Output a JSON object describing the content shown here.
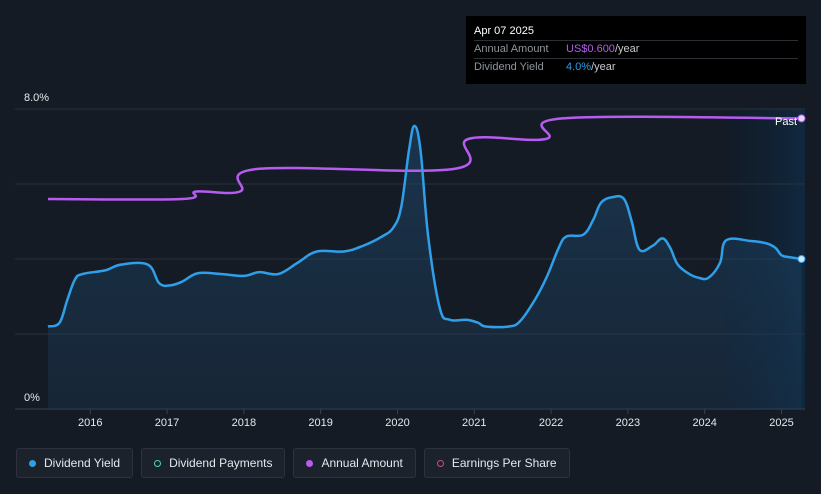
{
  "tooltip": {
    "date": "Apr 07 2025",
    "rows": [
      {
        "label": "Annual Amount",
        "value": "US$0.600",
        "unit": "/year"
      },
      {
        "label": "Dividend Yield",
        "value": "4.0%",
        "unit": "/year"
      }
    ]
  },
  "legend": [
    {
      "label": "Dividend Yield",
      "color": "#2e9fe8",
      "style": "filled"
    },
    {
      "label": "Dividend Payments",
      "color": "#4fd1c5",
      "style": "hollow"
    },
    {
      "label": "Annual Amount",
      "color": "#b65cf0",
      "style": "filled"
    },
    {
      "label": "Earnings Per Share",
      "color": "#e0457b",
      "style": "hollow"
    }
  ],
  "chart_data": {
    "type": "line",
    "ylim": [
      0,
      8
    ],
    "y_tick_labels": [
      "0%",
      "8.0%"
    ],
    "xlim": [
      2015.45,
      2025.28
    ],
    "x_tick_labels": [
      "2016",
      "2017",
      "2018",
      "2019",
      "2020",
      "2021",
      "2022",
      "2023",
      "2024",
      "2025"
    ],
    "x_tick_values": [
      2016,
      2017,
      2018,
      2019,
      2020,
      2021,
      2022,
      2023,
      2024,
      2025
    ],
    "past_label": "Past",
    "past_region_start": 2024.28,
    "grid": true,
    "colors": {
      "yield": "#2e9fe8",
      "amount": "#b65cf0"
    },
    "series": [
      {
        "name": "Dividend Yield",
        "unit": "%",
        "points": [
          [
            2015.45,
            2.2
          ],
          [
            2015.6,
            2.3
          ],
          [
            2015.7,
            2.9
          ],
          [
            2015.8,
            3.45
          ],
          [
            2015.9,
            3.6
          ],
          [
            2016.2,
            3.7
          ],
          [
            2016.4,
            3.85
          ],
          [
            2016.75,
            3.85
          ],
          [
            2016.9,
            3.35
          ],
          [
            2017.05,
            3.3
          ],
          [
            2017.2,
            3.4
          ],
          [
            2017.4,
            3.62
          ],
          [
            2017.7,
            3.6
          ],
          [
            2018.0,
            3.55
          ],
          [
            2018.2,
            3.65
          ],
          [
            2018.45,
            3.6
          ],
          [
            2018.7,
            3.9
          ],
          [
            2018.95,
            4.2
          ],
          [
            2019.3,
            4.2
          ],
          [
            2019.55,
            4.35
          ],
          [
            2019.8,
            4.6
          ],
          [
            2019.95,
            4.85
          ],
          [
            2020.05,
            5.4
          ],
          [
            2020.15,
            6.9
          ],
          [
            2020.22,
            7.55
          ],
          [
            2020.3,
            6.9
          ],
          [
            2020.4,
            4.6
          ],
          [
            2020.55,
            2.7
          ],
          [
            2020.68,
            2.38
          ],
          [
            2020.9,
            2.38
          ],
          [
            2021.05,
            2.3
          ],
          [
            2021.15,
            2.2
          ],
          [
            2021.45,
            2.2
          ],
          [
            2021.6,
            2.35
          ],
          [
            2021.8,
            2.95
          ],
          [
            2021.95,
            3.55
          ],
          [
            2022.1,
            4.3
          ],
          [
            2022.2,
            4.6
          ],
          [
            2022.42,
            4.65
          ],
          [
            2022.55,
            5.05
          ],
          [
            2022.65,
            5.5
          ],
          [
            2022.8,
            5.65
          ],
          [
            2022.95,
            5.6
          ],
          [
            2023.05,
            5.0
          ],
          [
            2023.15,
            4.25
          ],
          [
            2023.32,
            4.35
          ],
          [
            2023.45,
            4.55
          ],
          [
            2023.55,
            4.3
          ],
          [
            2023.65,
            3.85
          ],
          [
            2023.8,
            3.6
          ],
          [
            2023.92,
            3.5
          ],
          [
            2024.05,
            3.5
          ],
          [
            2024.2,
            3.9
          ],
          [
            2024.28,
            4.5
          ],
          [
            2024.6,
            4.48
          ],
          [
            2024.8,
            4.42
          ],
          [
            2024.92,
            4.3
          ],
          [
            2025.0,
            4.1
          ],
          [
            2025.1,
            4.05
          ],
          [
            2025.26,
            4.0
          ]
        ]
      },
      {
        "name": "Annual Amount",
        "unit": "scaled",
        "points": [
          [
            2015.45,
            5.6
          ],
          [
            2017.2,
            5.6
          ],
          [
            2017.38,
            5.8
          ],
          [
            2017.95,
            5.8
          ],
          [
            2018.17,
            6.4
          ],
          [
            2020.73,
            6.4
          ],
          [
            2020.92,
            7.2
          ],
          [
            2021.93,
            7.2
          ],
          [
            2022.15,
            7.75
          ],
          [
            2025.26,
            7.75
          ]
        ]
      }
    ]
  }
}
